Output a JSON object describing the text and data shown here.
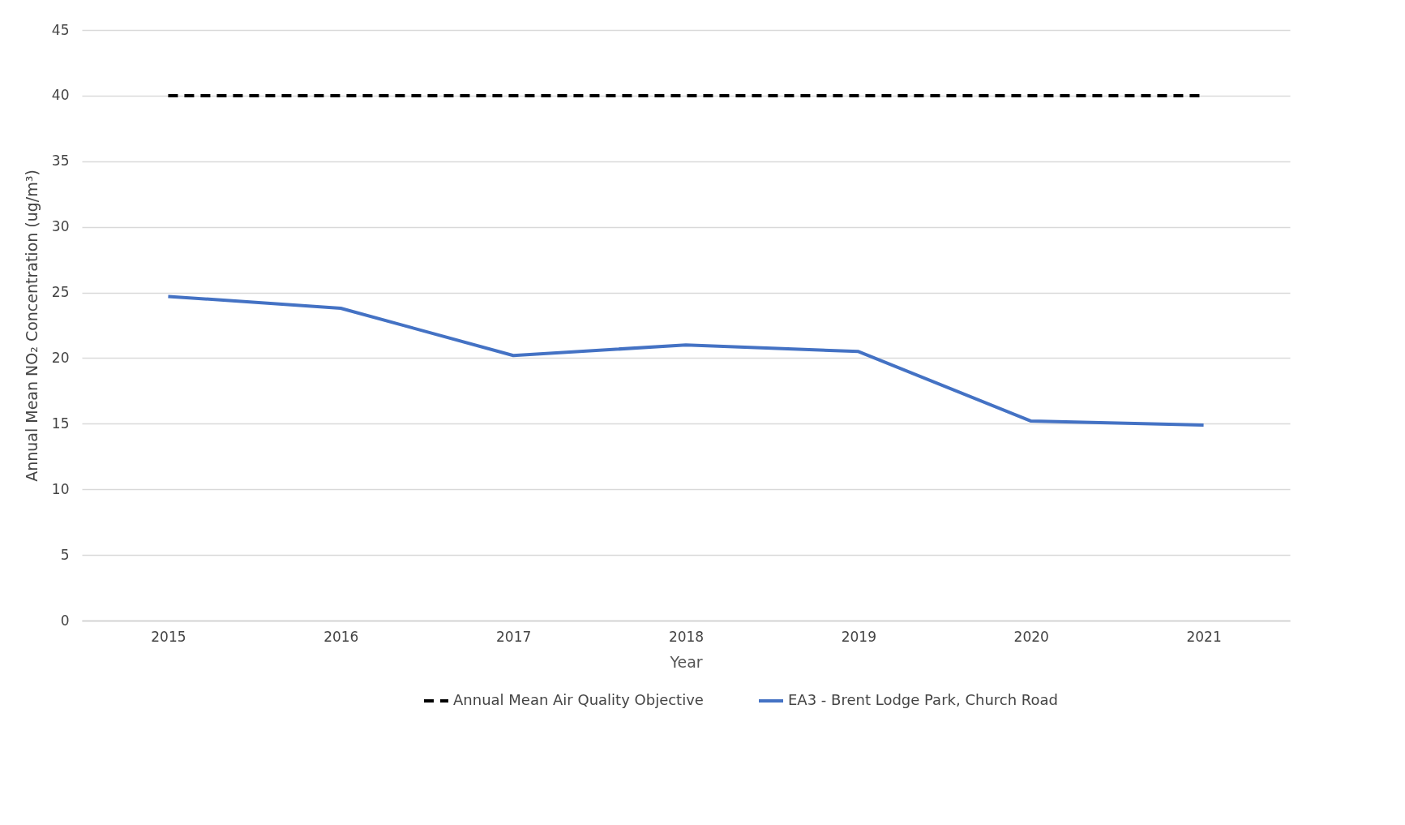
{
  "chart_data": {
    "type": "line",
    "xlabel": "Year",
    "ylabel": "Annual Mean NO₂ Concentration (ug/m³)",
    "categories": [
      "2015",
      "2016",
      "2017",
      "2018",
      "2019",
      "2020",
      "2021"
    ],
    "series": [
      {
        "name": "Annual Mean Air Quality Objective",
        "color": "#000000",
        "line_style": "dashed",
        "values": [
          40,
          40,
          40,
          40,
          40,
          40,
          40
        ]
      },
      {
        "name": "EA3 - Brent Lodge Park, Church Road",
        "color": "#4472c4",
        "line_style": "solid",
        "values": [
          24.7,
          23.8,
          20.2,
          21.0,
          20.5,
          15.2,
          14.9
        ]
      }
    ],
    "ylim": [
      0,
      45
    ],
    "yticks": [
      0,
      5,
      10,
      15,
      20,
      25,
      30,
      35,
      40,
      45
    ],
    "grid": "y",
    "legend": "bottom"
  }
}
